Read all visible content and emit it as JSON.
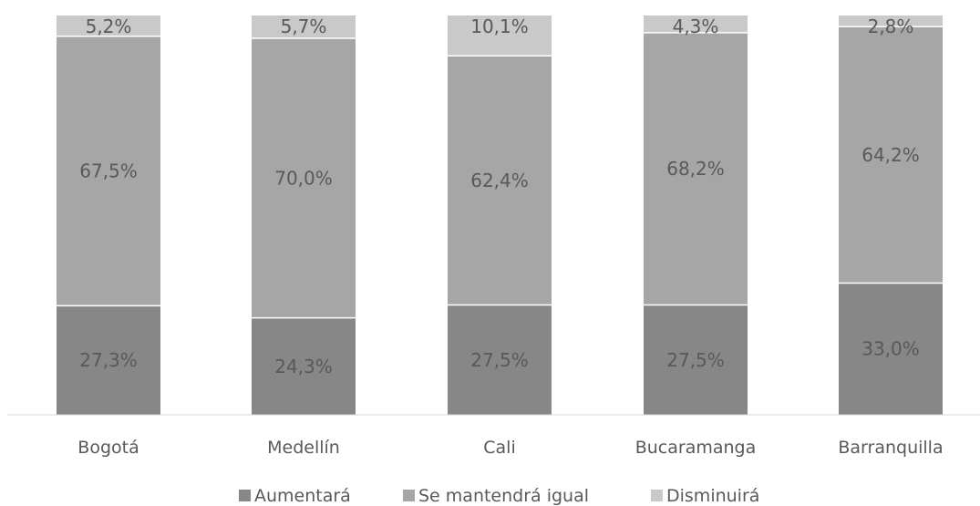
{
  "chart_data": {
    "type": "bar",
    "stacked": true,
    "percent_stacked": true,
    "categories": [
      "Bogotá",
      "Medellín",
      "Cali",
      "Bucaramanga",
      "Barranquilla"
    ],
    "series": [
      {
        "name": "Aumentará",
        "values": [
          27.3,
          24.3,
          27.5,
          27.5,
          33.0
        ],
        "labels": [
          "27,3%",
          "24,3%",
          "27,5%",
          "27,5%",
          "33,0%"
        ],
        "color": "#878787"
      },
      {
        "name": "Se mantendrá igual",
        "values": [
          67.5,
          70.0,
          62.4,
          68.2,
          64.2
        ],
        "labels": [
          "67,5%",
          "70,0%",
          "62,4%",
          "68,2%",
          "64,2%"
        ],
        "color": "#a6a6a6"
      },
      {
        "name": "Disminuirá",
        "values": [
          5.2,
          5.7,
          10.1,
          4.3,
          2.8
        ],
        "labels": [
          "5,2%",
          "5,7%",
          "10,1%",
          "4,3%",
          "2,8%"
        ],
        "color": "#c9c9c9"
      }
    ],
    "ylim": [
      0,
      100
    ],
    "grid": false,
    "legend_position": "bottom"
  }
}
